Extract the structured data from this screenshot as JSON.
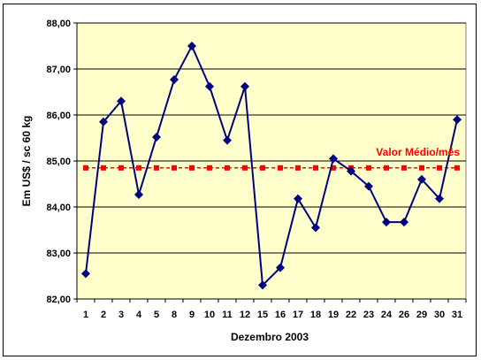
{
  "chart_data": {
    "type": "line",
    "title": "",
    "xlabel": "Dezembro 2003",
    "ylabel": "Em US$ / sc 60 kg",
    "ylim": [
      82,
      88
    ],
    "yticks": [
      "82,00",
      "83,00",
      "84,00",
      "85,00",
      "86,00",
      "87,00",
      "88,00"
    ],
    "grid": "horizontal",
    "categories": [
      "1",
      "2",
      "3",
      "4",
      "5",
      "8",
      "9",
      "10",
      "11",
      "12",
      "15",
      "16",
      "17",
      "18",
      "19",
      "22",
      "23",
      "24",
      "26",
      "29",
      "30",
      "31"
    ],
    "series": [
      {
        "values": [
          82.55,
          85.85,
          86.3,
          84.27,
          85.52,
          86.77,
          87.5,
          86.62,
          85.45,
          86.62,
          82.3,
          82.68,
          84.18,
          83.55,
          85.05,
          84.78,
          84.45,
          83.67,
          83.67,
          84.6,
          84.18,
          85.9
        ],
        "color": "#000080"
      },
      {
        "values": [
          84.85,
          84.85,
          84.85,
          84.85,
          84.85,
          84.85,
          84.85,
          84.85,
          84.85,
          84.85,
          84.85,
          84.85,
          84.85,
          84.85,
          84.85,
          84.85,
          84.85,
          84.85,
          84.85,
          84.85,
          84.85,
          84.85
        ],
        "color": "#ff0000"
      }
    ],
    "annotations": [
      "Valor Médio/mês"
    ]
  },
  "colors": {
    "plot_bg": "#ffffcc",
    "price_line": "#000080",
    "average_line": "#ff0000",
    "grid": "#000000"
  }
}
